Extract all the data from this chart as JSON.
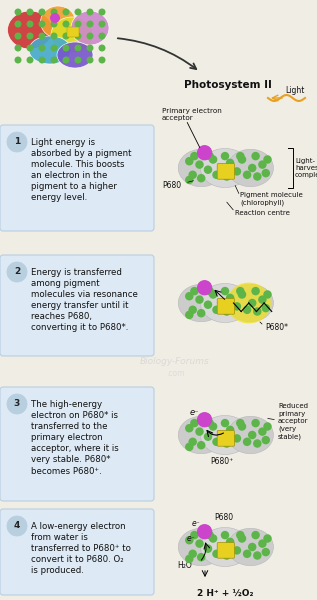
{
  "bg_color": "#f0ede4",
  "title": "Photosystem II",
  "steps": [
    {
      "number": "1",
      "text": "Light energy is\nabsorbed by a pigment\nmolecule. This boosts\nan electron in the\npigment to a higher\nenergy level."
    },
    {
      "number": "2",
      "text": "Energy is transferred\namong pigment\nmolecules via resonance\nenergy transfer until it\nreaches P680,\nconverting it to P680*."
    },
    {
      "number": "3",
      "text": "The high-energy\nelectron on P680* is\ntransferred to the\nprimary electron\nacceptor, where it is\nvery stable. P680*\nbecomes P680⁺."
    },
    {
      "number": "4",
      "text": "A low-energy electron\nfrom water is\ntransferred to P680⁺ to\nconvert it to P680. O₂\nis produced."
    }
  ],
  "box_color": "#ddeaf5",
  "box_edge_color": "#b8cfe0",
  "num_circle_color": "#b8cfe0",
  "green": "#5db54a",
  "magenta": "#cc44cc",
  "yellow": "#e8d020",
  "gray_blob": "#d4d4d4",
  "gray_blob_dark": "#b8b8b8",
  "watermark": "Biology-Forums",
  "watermark_sub": ".com"
}
